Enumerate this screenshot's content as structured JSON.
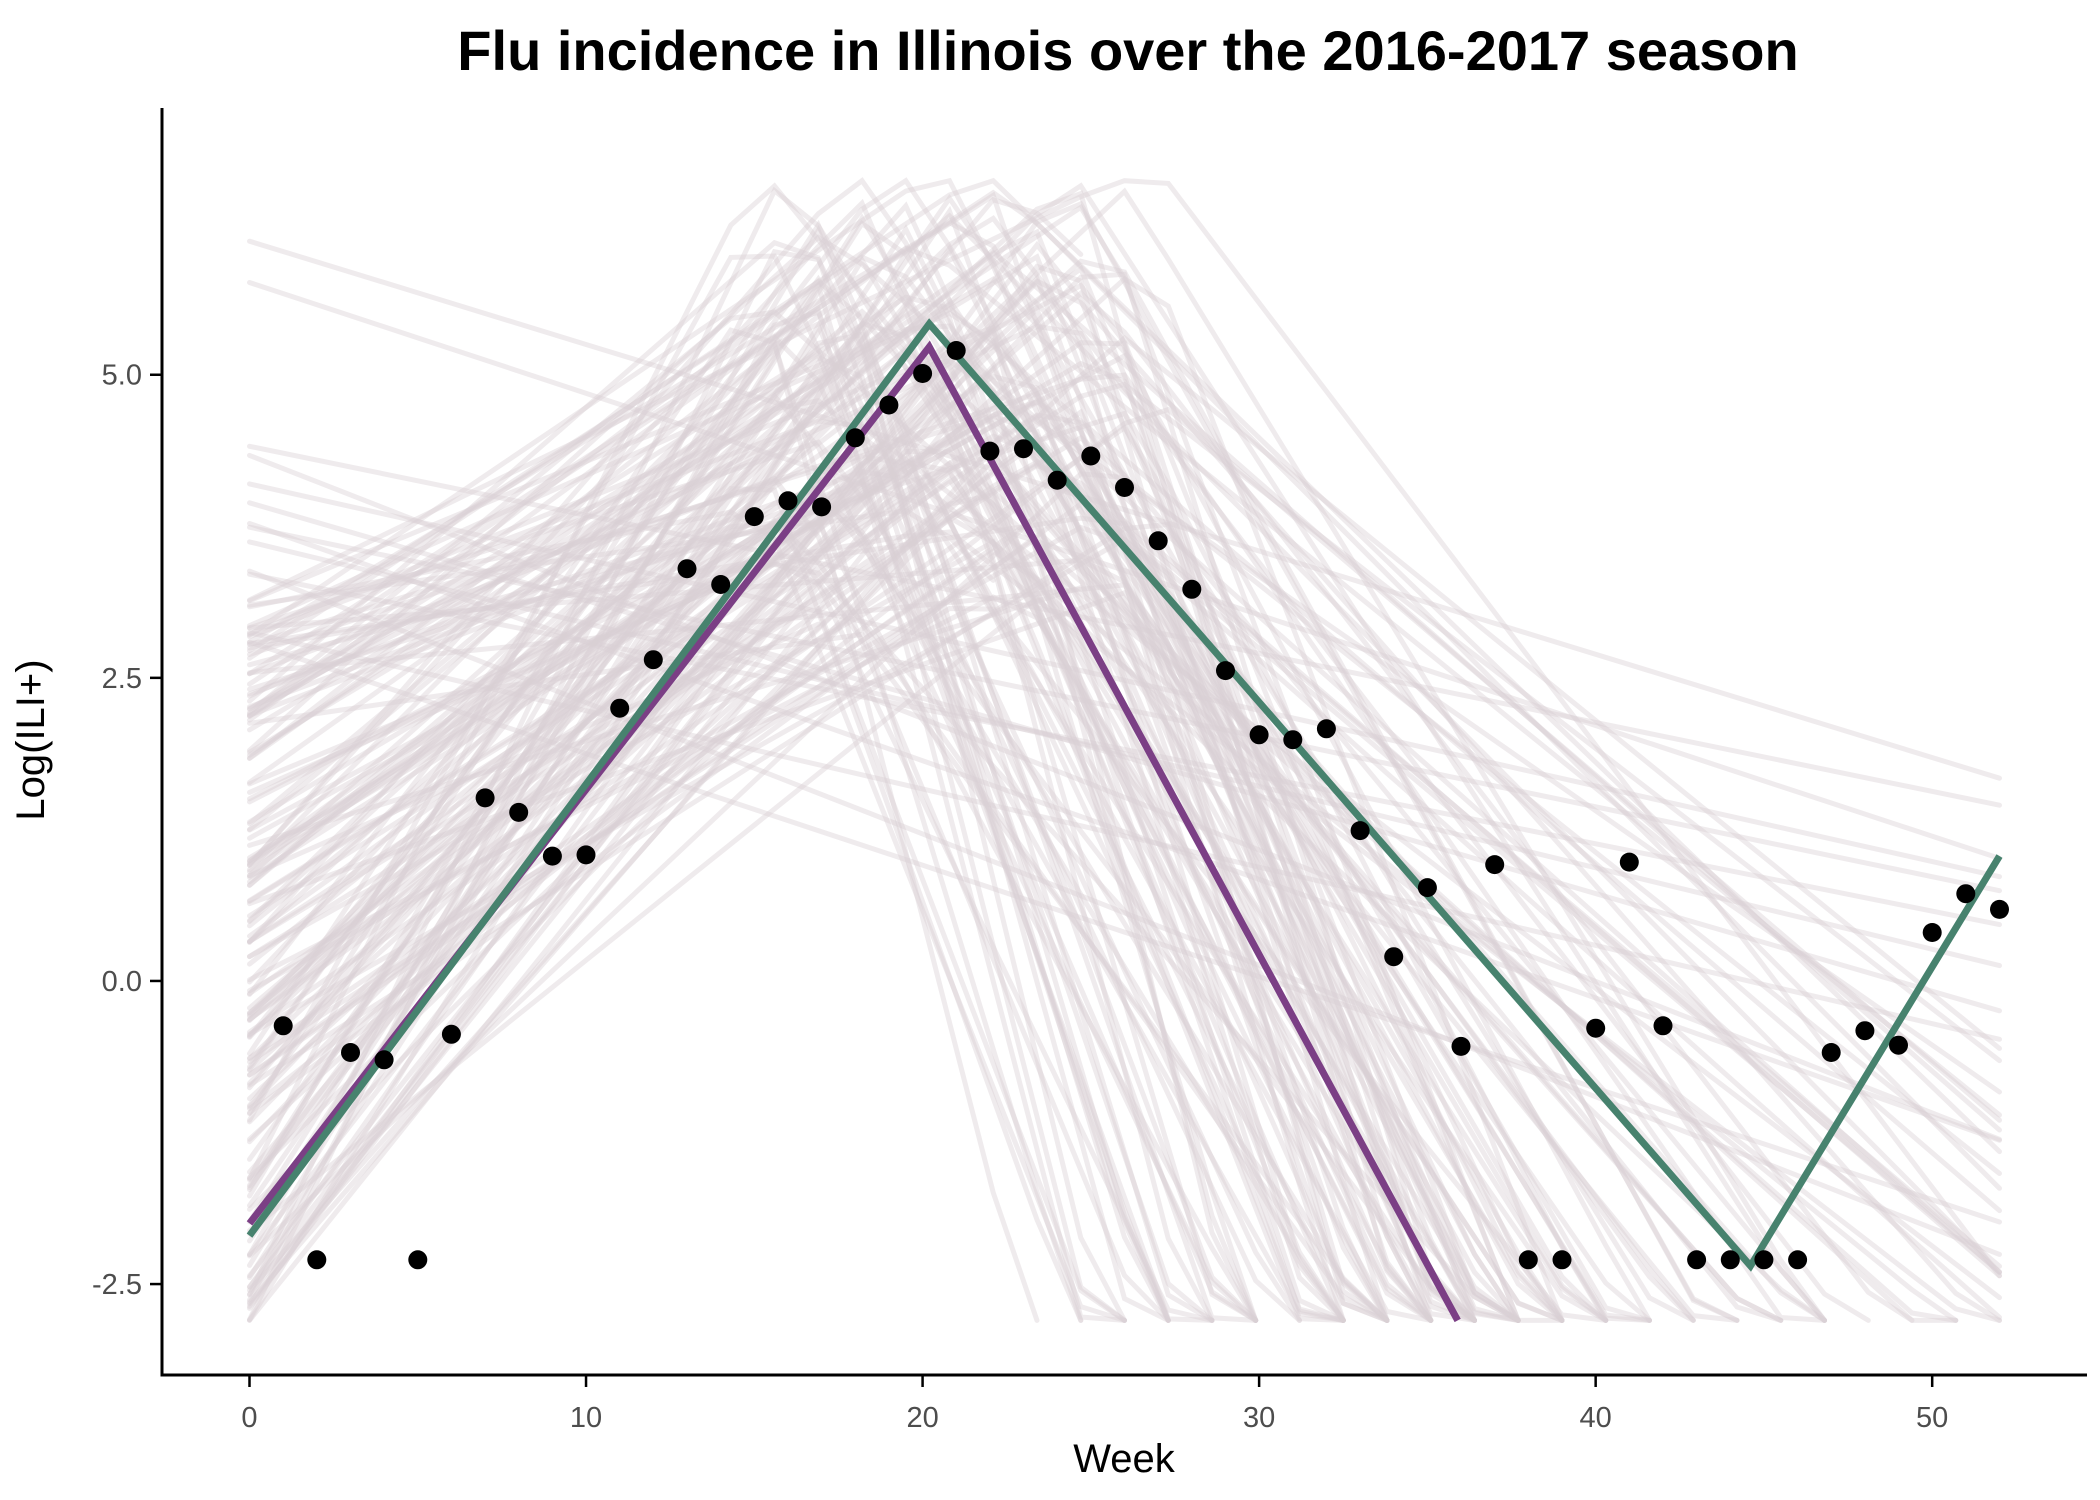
{
  "chart_data": {
    "type": "line",
    "title": "Flu incidence in Illinois over the 2016-2017 season",
    "xlabel": "Week",
    "ylabel": "Log(ILI+)",
    "xlim": [
      -2.6,
      54.6
    ],
    "ylim": [
      -3.25,
      7.2
    ],
    "x_ticks": [
      0,
      10,
      20,
      30,
      40,
      50
    ],
    "x_tick_labels": [
      "0",
      "10",
      "20",
      "30",
      "40",
      "50"
    ],
    "y_ticks": [
      -2.5,
      0,
      2.5,
      5
    ],
    "y_tick_labels": [
      "-2.5",
      "0.0",
      "2.5",
      "5.0"
    ],
    "grid": false,
    "observed_points": {
      "color": "#000000",
      "x": [
        1,
        2,
        3,
        4,
        5,
        6,
        7,
        8,
        9,
        10,
        11,
        12,
        13,
        14,
        15,
        16,
        17,
        18,
        19,
        20,
        21,
        22,
        23,
        24,
        25,
        26,
        27,
        28,
        29,
        30,
        31,
        32,
        33,
        34,
        35,
        36,
        37,
        38,
        39,
        40,
        41,
        42,
        43,
        44,
        45,
        46,
        47,
        48,
        49,
        50,
        51,
        52
      ],
      "y": [
        -0.37,
        -2.3,
        -0.59,
        -0.65,
        -2.3,
        -0.44,
        1.51,
        1.39,
        1.03,
        1.04,
        2.25,
        2.65,
        3.4,
        3.27,
        3.83,
        3.96,
        3.91,
        4.48,
        4.75,
        5.01,
        5.2,
        4.37,
        4.39,
        4.13,
        4.33,
        4.07,
        3.63,
        3.23,
        2.56,
        2.03,
        1.99,
        2.08,
        1.24,
        0.2,
        0.77,
        -0.54,
        0.96,
        -2.3,
        -2.3,
        -0.39,
        0.98,
        -0.37,
        -2.3,
        -2.3,
        -2.3,
        -2.3,
        -0.59,
        -0.41,
        -0.53,
        0.4,
        0.72,
        0.59
      ]
    },
    "fit_lines": [
      {
        "color": "#7b3f85",
        "x": [
          0,
          20.2,
          35.9
        ],
        "y": [
          -2.0,
          5.23,
          -2.8
        ]
      },
      {
        "color": "#47826e",
        "x": [
          0,
          20.2,
          44.6,
          52
        ],
        "y": [
          -2.1,
          5.42,
          -2.35,
          1.03
        ]
      }
    ],
    "sample_lines": {
      "color": "#d8cfd4",
      "opacity": 0.42,
      "count": 170,
      "x_range": [
        0,
        52
      ],
      "y_floor": -2.8,
      "y_cap": 6.6
    }
  }
}
